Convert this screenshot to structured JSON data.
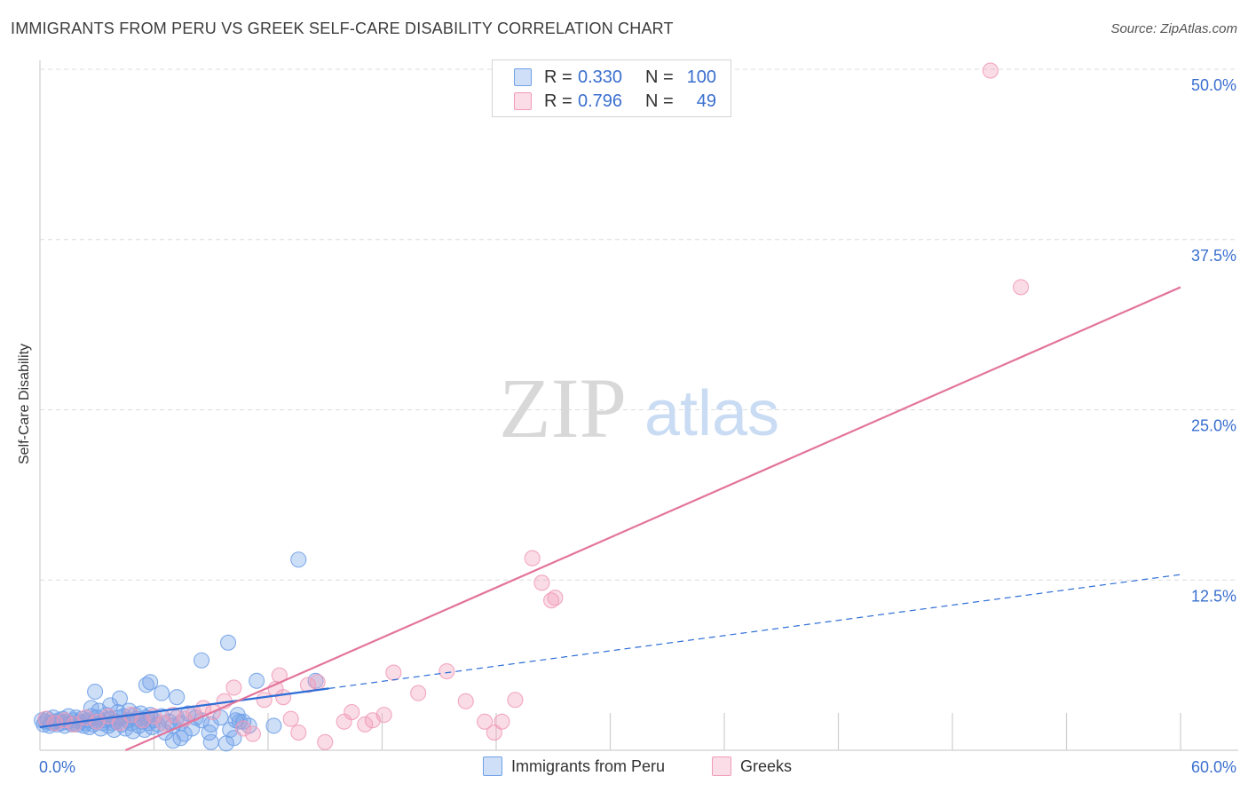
{
  "header": {
    "title": "IMMIGRANTS FROM PERU VS GREEK SELF-CARE DISABILITY CORRELATION CHART",
    "source": "Source: ZipAtlas.com"
  },
  "watermark": {
    "zip": "ZIP",
    "atlas": "atlas"
  },
  "stats": [
    {
      "r_label": "R =",
      "r_value": "0.330",
      "n_label": "N =",
      "n_value": "100",
      "color": "#6fa0e8"
    },
    {
      "r_label": "R =",
      "r_value": "0.796",
      "n_label": "N =",
      "n_value": "49",
      "color": "#f09ab8"
    }
  ],
  "legend": [
    {
      "label": "Immigrants from Peru",
      "color": "#6fa0e8"
    },
    {
      "label": "Greeks",
      "color": "#f09ab8"
    }
  ],
  "colors": {
    "blue": "#6fa0e8",
    "blue_line": "#2d6ed6",
    "pink": "#f09ab8",
    "pink_line": "#e3749c",
    "tick_text": "#3a6fcf",
    "grid": "#dcdcdc"
  },
  "chart_data": {
    "type": "scatter",
    "title": "IMMIGRANTS FROM PERU VS GREEK SELF-CARE DISABILITY CORRELATION CHART",
    "xlabel": "",
    "ylabel": "Self-Care Disability",
    "xlim": [
      0,
      60
    ],
    "ylim": [
      0,
      50
    ],
    "x_tick_labels": [
      "0.0%",
      "60.0%"
    ],
    "y_ticks": [
      12.5,
      25.0,
      37.5,
      50.0
    ],
    "y_tick_labels": [
      "12.5%",
      "25.0%",
      "37.5%",
      "50.0%"
    ],
    "grid": "horizontal dashed",
    "legend_position": "bottom-center",
    "series": [
      {
        "name": "Immigrants from Peru",
        "trend": {
          "x0": 0,
          "y0": 1.7,
          "x1": 60,
          "y1": 12.9,
          "solid_until_x": 15.2
        },
        "points": [
          [
            0.1,
            2.2
          ],
          [
            0.2,
            1.9
          ],
          [
            0.3,
            2.1
          ],
          [
            0.4,
            2.3
          ],
          [
            0.5,
            1.8
          ],
          [
            0.6,
            2.0
          ],
          [
            0.7,
            2.4
          ],
          [
            0.8,
            2.1
          ],
          [
            0.9,
            1.9
          ],
          [
            1.0,
            2.2
          ],
          [
            1.1,
            2.0
          ],
          [
            1.2,
            2.3
          ],
          [
            1.3,
            1.8
          ],
          [
            1.4,
            2.1
          ],
          [
            1.5,
            2.5
          ],
          [
            1.6,
            2.0
          ],
          [
            1.7,
            1.9
          ],
          [
            1.8,
            2.2
          ],
          [
            1.9,
            2.4
          ],
          [
            2.0,
            1.9
          ],
          [
            2.1,
            2.1
          ],
          [
            2.2,
            2.3
          ],
          [
            2.3,
            1.8
          ],
          [
            2.4,
            2.0
          ],
          [
            2.5,
            2.2
          ],
          [
            2.6,
            1.7
          ],
          [
            2.7,
            2.5
          ],
          [
            2.8,
            1.9
          ],
          [
            2.9,
            2.1
          ],
          [
            3.0,
            2.4
          ],
          [
            3.1,
            2.9
          ],
          [
            3.2,
            1.6
          ],
          [
            3.3,
            2.0
          ],
          [
            3.4,
            2.2
          ],
          [
            3.5,
            2.6
          ],
          [
            3.6,
            1.8
          ],
          [
            3.7,
            2.3
          ],
          [
            3.8,
            2.0
          ],
          [
            3.9,
            1.5
          ],
          [
            4.0,
            2.1
          ],
          [
            4.1,
            2.8
          ],
          [
            4.2,
            2.4
          ],
          [
            4.3,
            1.9
          ],
          [
            4.4,
            2.5
          ],
          [
            4.5,
            1.6
          ],
          [
            4.6,
            2.2
          ],
          [
            4.7,
            2.9
          ],
          [
            4.8,
            2.0
          ],
          [
            4.9,
            1.4
          ],
          [
            5.0,
            2.6
          ],
          [
            5.1,
            2.3
          ],
          [
            5.2,
            1.8
          ],
          [
            5.3,
            2.7
          ],
          [
            5.4,
            2.1
          ],
          [
            5.5,
            1.5
          ],
          [
            5.6,
            2.4
          ],
          [
            5.7,
            2.0
          ],
          [
            5.8,
            2.6
          ],
          [
            5.9,
            1.7
          ],
          [
            6.0,
            2.2
          ],
          [
            6.2,
            1.9
          ],
          [
            6.4,
            2.5
          ],
          [
            6.6,
            1.3
          ],
          [
            6.8,
            2.1
          ],
          [
            7.0,
            1.8
          ],
          [
            7.2,
            2.4
          ],
          [
            7.4,
            2.0
          ],
          [
            7.6,
            1.2
          ],
          [
            7.8,
            2.7
          ],
          [
            8.0,
            1.6
          ],
          [
            8.5,
            2.2
          ],
          [
            9.0,
            1.9
          ],
          [
            9.5,
            2.4
          ],
          [
            10.0,
            1.5
          ],
          [
            10.5,
            2.1
          ],
          [
            11.0,
            1.8
          ],
          [
            6.4,
            4.2
          ],
          [
            5.8,
            5.0
          ],
          [
            5.6,
            4.8
          ],
          [
            3.7,
            3.3
          ],
          [
            2.7,
            3.1
          ],
          [
            2.9,
            4.3
          ],
          [
            4.2,
            3.8
          ],
          [
            8.2,
            2.4
          ],
          [
            7.0,
            0.7
          ],
          [
            7.4,
            0.9
          ],
          [
            8.9,
            1.3
          ],
          [
            9.0,
            0.6
          ],
          [
            9.8,
            0.5
          ],
          [
            10.2,
            0.9
          ],
          [
            12.3,
            1.8
          ],
          [
            14.5,
            5.1
          ],
          [
            10.4,
            2.6
          ],
          [
            8.5,
            6.6
          ],
          [
            9.9,
            7.9
          ],
          [
            10.3,
            2.2
          ],
          [
            10.7,
            2.1
          ],
          [
            11.4,
            5.1
          ],
          [
            13.6,
            14.0
          ],
          [
            7.2,
            3.9
          ]
        ]
      },
      {
        "name": "Greeks",
        "trend": {
          "x0": 4.5,
          "y0": 0,
          "x1": 60,
          "y1": 34.0
        },
        "points": [
          [
            0.3,
            2.3
          ],
          [
            0.8,
            2.0
          ],
          [
            1.3,
            2.2
          ],
          [
            1.8,
            1.9
          ],
          [
            2.4,
            2.4
          ],
          [
            3.0,
            2.1
          ],
          [
            3.6,
            2.5
          ],
          [
            4.2,
            2.0
          ],
          [
            4.8,
            2.6
          ],
          [
            5.4,
            2.2
          ],
          [
            6.0,
            2.5
          ],
          [
            6.5,
            2.0
          ],
          [
            7.0,
            2.6
          ],
          [
            7.6,
            2.3
          ],
          [
            8.1,
            2.7
          ],
          [
            8.6,
            3.1
          ],
          [
            9.1,
            2.8
          ],
          [
            9.7,
            3.6
          ],
          [
            10.2,
            4.6
          ],
          [
            10.7,
            1.6
          ],
          [
            11.2,
            1.2
          ],
          [
            11.8,
            3.7
          ],
          [
            12.4,
            4.5
          ],
          [
            12.6,
            5.5
          ],
          [
            12.8,
            3.9
          ],
          [
            13.2,
            2.3
          ],
          [
            13.6,
            1.3
          ],
          [
            14.1,
            4.8
          ],
          [
            14.6,
            5.0
          ],
          [
            15.0,
            0.6
          ],
          [
            16.0,
            2.1
          ],
          [
            16.4,
            2.8
          ],
          [
            17.1,
            1.9
          ],
          [
            17.5,
            2.2
          ],
          [
            18.1,
            2.6
          ],
          [
            18.6,
            5.7
          ],
          [
            19.9,
            4.2
          ],
          [
            21.4,
            5.8
          ],
          [
            22.4,
            3.6
          ],
          [
            23.4,
            2.1
          ],
          [
            23.9,
            1.3
          ],
          [
            24.3,
            2.1
          ],
          [
            25.0,
            3.7
          ],
          [
            25.9,
            14.1
          ],
          [
            26.4,
            12.3
          ],
          [
            26.9,
            11.0
          ],
          [
            27.1,
            11.2
          ],
          [
            50.0,
            49.9
          ],
          [
            51.6,
            34.0
          ]
        ]
      }
    ]
  }
}
